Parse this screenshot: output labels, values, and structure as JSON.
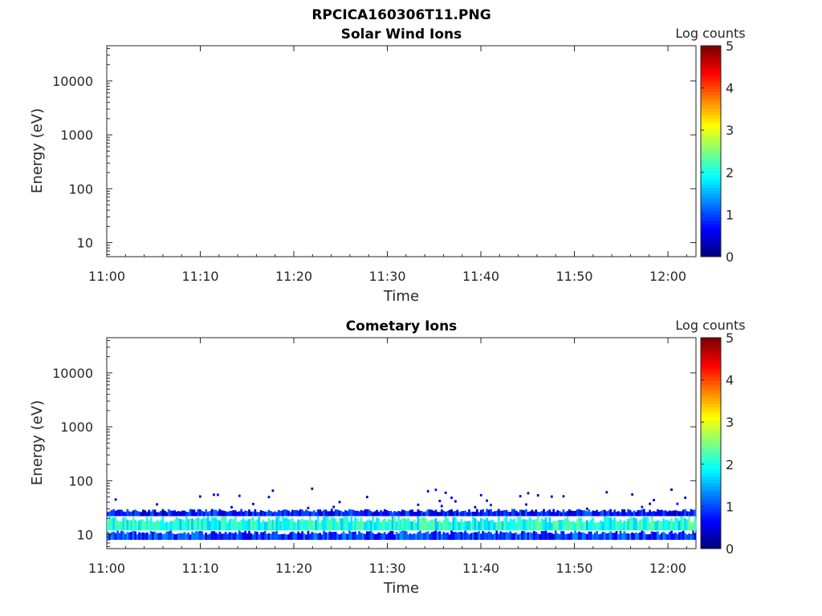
{
  "figure": {
    "title": "RPCICA160306T11.PNG"
  },
  "chart_data": [
    {
      "type": "heatmap",
      "title": "Solar Wind Ions",
      "xlabel": "Time",
      "ylabel": "Energy (eV)",
      "x_ticks": [
        "11:00",
        "11:10",
        "11:20",
        "11:30",
        "11:40",
        "11:50",
        "12:00"
      ],
      "x_range": [
        "11:00",
        "12:03"
      ],
      "y_scale": "log",
      "y_ticks": [
        10,
        100,
        1000,
        10000
      ],
      "y_range": [
        5.5,
        45000
      ],
      "colorbar": {
        "label": "Log counts",
        "range": [
          0,
          5
        ],
        "ticks": [
          0,
          1,
          2,
          3,
          4,
          5
        ],
        "colormap": "jet"
      },
      "data": []
    },
    {
      "type": "heatmap",
      "title": "Cometary Ions",
      "xlabel": "Time",
      "ylabel": "Energy (eV)",
      "x_ticks": [
        "11:00",
        "11:10",
        "11:20",
        "11:30",
        "11:40",
        "11:50",
        "12:00"
      ],
      "x_range": [
        "11:00",
        "12:03"
      ],
      "y_scale": "log",
      "y_ticks": [
        10,
        100,
        1000,
        10000
      ],
      "y_range": [
        5.5,
        45000
      ],
      "colorbar": {
        "label": "Log counts",
        "range": [
          0,
          5
        ],
        "ticks": [
          0,
          1,
          2,
          3,
          4,
          5
        ],
        "colormap": "jet"
      },
      "data": [
        {
          "energy_range_eV": [
            12,
            22
          ],
          "log_counts": 2.0
        },
        {
          "energy_range_eV": [
            8,
            12
          ],
          "log_counts": 0.9
        },
        {
          "energy_range_eV": [
            22,
            30
          ],
          "log_counts": 0.7
        },
        {
          "energy_range_eV": [
            30,
            80
          ],
          "log_counts": 0.3
        }
      ]
    }
  ]
}
